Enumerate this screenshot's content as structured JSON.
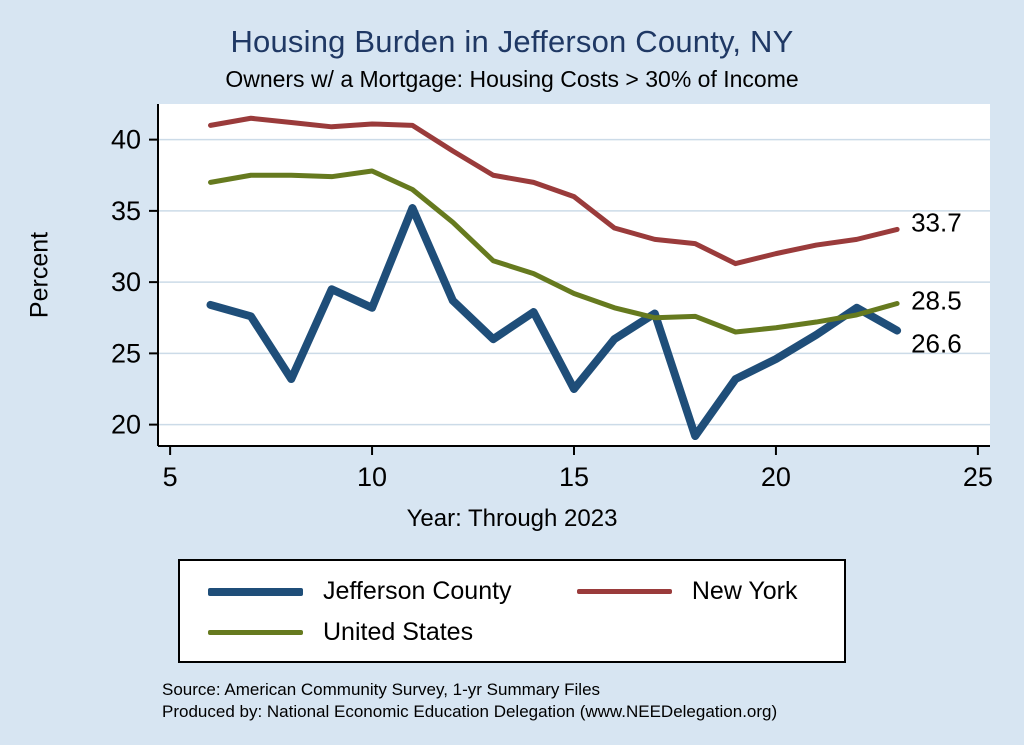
{
  "title": "Housing Burden in Jefferson County, NY",
  "subtitle": "Owners w/ a Mortgage: Housing Costs > 30% of Income",
  "xlabel": "Year: Through 2023",
  "ylabel": "Percent",
  "source_line1": "Source: American Community Survey, 1-yr Summary Files",
  "source_line2": "Produced by: National Economic Education Delegation (www.NEEDelegation.org)",
  "colors": {
    "background": "#d7e5f2",
    "plot_background": "#ffffff",
    "grid": "#ccdbe8",
    "axis": "#000000",
    "title": "#1f3864"
  },
  "legend": {
    "items": [
      {
        "label": "Jefferson County",
        "series_index": 0
      },
      {
        "label": "New York",
        "series_index": 1
      },
      {
        "label": "United States",
        "series_index": 2
      }
    ]
  },
  "chart_data": {
    "type": "line",
    "title": "Housing Burden in Jefferson County, NY",
    "subtitle": "Owners w/ a Mortgage: Housing Costs > 30% of Income",
    "xlabel": "Year: Through 2023",
    "ylabel": "Percent",
    "x": [
      6,
      7,
      8,
      9,
      10,
      11,
      12,
      13,
      14,
      15,
      16,
      17,
      18,
      19,
      20,
      21,
      22,
      23
    ],
    "series": [
      {
        "name": "Jefferson County",
        "color": "#1f4e79",
        "width": 8,
        "values": [
          28.4,
          27.6,
          23.2,
          29.5,
          28.2,
          35.2,
          28.7,
          26.0,
          27.9,
          22.5,
          26.0,
          27.8,
          19.2,
          23.2,
          24.6,
          26.3,
          28.2,
          26.6
        ],
        "end_label": "26.6",
        "label_dy": 22
      },
      {
        "name": "New York",
        "color": "#9a3b3b",
        "width": 5,
        "values": [
          41.0,
          41.5,
          41.2,
          40.9,
          41.1,
          41.0,
          39.2,
          37.5,
          37.0,
          36.0,
          33.8,
          33.0,
          32.7,
          31.3,
          32.0,
          32.6,
          33.0,
          33.7
        ],
        "end_label": "33.7",
        "label_dy": 2
      },
      {
        "name": "United States",
        "color": "#667a1f",
        "width": 5,
        "values": [
          37.0,
          37.5,
          37.5,
          37.4,
          37.8,
          36.5,
          34.2,
          31.5,
          30.6,
          29.2,
          28.2,
          27.5,
          27.6,
          26.5,
          26.8,
          27.2,
          27.7,
          28.5
        ],
        "end_label": "28.5",
        "label_dy": 6
      }
    ],
    "xticks": [
      5,
      10,
      15,
      20,
      25
    ],
    "yticks": [
      20,
      25,
      30,
      35,
      40
    ],
    "xlim": [
      4.7,
      25.3
    ],
    "ylim": [
      18.5,
      42.5
    ],
    "grid": true,
    "legend_position": "bottom"
  }
}
